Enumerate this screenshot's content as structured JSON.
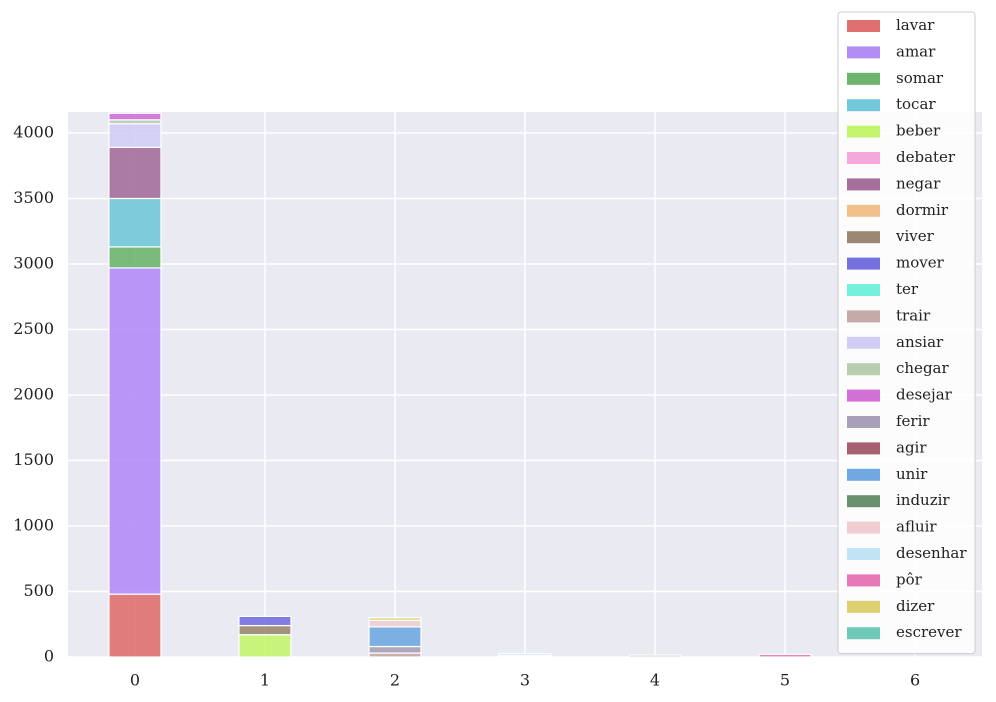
{
  "chart_data": {
    "type": "bar",
    "stacked": true,
    "x": [
      0,
      1,
      2,
      3,
      4,
      5,
      6
    ],
    "xlim": [
      -0.515,
      6.515
    ],
    "xticks": [
      0,
      1,
      2,
      3,
      4,
      5,
      6
    ],
    "ylim": [
      0,
      4160
    ],
    "yticks": [
      0,
      500,
      1000,
      1500,
      2000,
      2500,
      3000,
      3500,
      4000
    ],
    "bar_width": 0.4,
    "grid": true,
    "legend": "upper right",
    "series": [
      {
        "name": "lavar",
        "color": "#e07070",
        "values": [
          480,
          0,
          0,
          0,
          0,
          0,
          0
        ]
      },
      {
        "name": "amar",
        "color": "#b48cf5",
        "values": [
          2490,
          0,
          0,
          0,
          0,
          0,
          0
        ]
      },
      {
        "name": "somar",
        "color": "#6db56d",
        "values": [
          160,
          0,
          0,
          0,
          0,
          0,
          0
        ]
      },
      {
        "name": "tocar",
        "color": "#72c8d8",
        "values": [
          370,
          0,
          0,
          0,
          0,
          0,
          0
        ]
      },
      {
        "name": "beber",
        "color": "#c4f56e",
        "values": [
          0,
          170,
          0,
          0,
          0,
          0,
          0
        ]
      },
      {
        "name": "debater",
        "color": "#f5a8dc",
        "values": [
          0,
          0,
          0,
          0,
          0,
          0,
          0
        ]
      },
      {
        "name": "negar",
        "color": "#a46f9a",
        "values": [
          390,
          0,
          0,
          0,
          0,
          0,
          0
        ]
      },
      {
        "name": "dormir",
        "color": "#f2c08a",
        "values": [
          0,
          0,
          0,
          0,
          0,
          0,
          0
        ]
      },
      {
        "name": "viver",
        "color": "#9a8873",
        "values": [
          0,
          70,
          0,
          0,
          0,
          0,
          0
        ]
      },
      {
        "name": "mover",
        "color": "#7470e0",
        "values": [
          0,
          70,
          0,
          0,
          0,
          0,
          0
        ]
      },
      {
        "name": "ter",
        "color": "#74f0dc",
        "values": [
          0,
          0,
          0,
          10,
          0,
          0,
          0
        ]
      },
      {
        "name": "trair",
        "color": "#c4aaa8",
        "values": [
          0,
          0,
          30,
          0,
          0,
          0,
          0
        ]
      },
      {
        "name": "ansiar",
        "color": "#d2cdf5",
        "values": [
          180,
          0,
          0,
          0,
          0,
          0,
          0
        ]
      },
      {
        "name": "chegar",
        "color": "#b9cdb1",
        "values": [
          30,
          0,
          0,
          0,
          15,
          0,
          0
        ]
      },
      {
        "name": "desejar",
        "color": "#d270d8",
        "values": [
          50,
          0,
          0,
          0,
          0,
          0,
          0
        ]
      },
      {
        "name": "ferir",
        "color": "#a8a0b8",
        "values": [
          0,
          0,
          50,
          0,
          0,
          0,
          0
        ]
      },
      {
        "name": "agir",
        "color": "#a86070",
        "values": [
          0,
          0,
          0,
          0,
          0,
          0,
          0
        ]
      },
      {
        "name": "unir",
        "color": "#70a8e0",
        "values": [
          0,
          0,
          150,
          0,
          0,
          0,
          0
        ]
      },
      {
        "name": "induzir",
        "color": "#6a9070",
        "values": [
          0,
          0,
          0,
          0,
          0,
          0,
          0
        ]
      },
      {
        "name": "afluir",
        "color": "#efcdd0",
        "values": [
          0,
          0,
          50,
          0,
          0,
          0,
          0
        ]
      },
      {
        "name": "desenhar",
        "color": "#c0e4f5",
        "values": [
          0,
          0,
          0,
          15,
          0,
          0,
          0
        ]
      },
      {
        "name": "pôr",
        "color": "#e878b8",
        "values": [
          0,
          0,
          0,
          0,
          0,
          20,
          0
        ]
      },
      {
        "name": "dizer",
        "color": "#dcd070",
        "values": [
          0,
          0,
          20,
          0,
          0,
          0,
          0
        ]
      },
      {
        "name": "escrever",
        "color": "#70c8b8",
        "values": [
          0,
          0,
          0,
          0,
          0,
          0,
          0
        ]
      }
    ]
  }
}
